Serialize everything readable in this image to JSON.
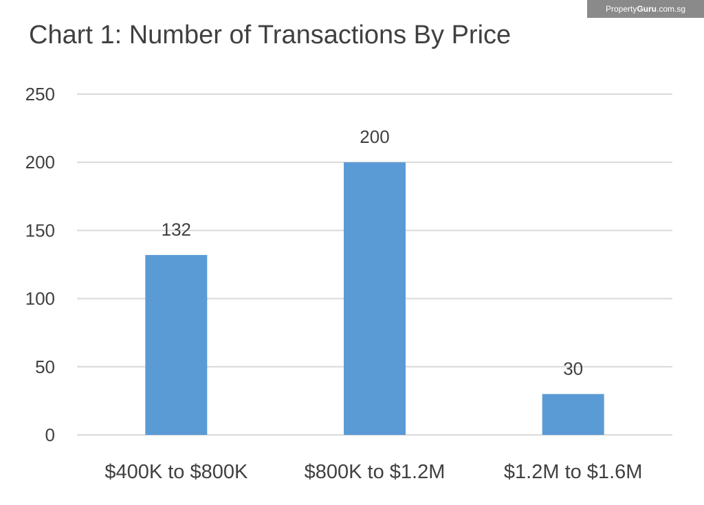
{
  "watermark": {
    "brand_prefix": "Property",
    "brand_bold": "Guru",
    "brand_suffix": ".com.sg"
  },
  "chart_data": {
    "type": "bar",
    "title": "Chart 1: Number of Transactions By Price",
    "xlabel": "",
    "ylabel": "",
    "categories": [
      "$400K to $800K",
      "$800K to $1.2M",
      "$1.2M to $1.6M"
    ],
    "values": [
      132,
      200,
      30
    ],
    "data_labels": [
      "132",
      "200",
      "30"
    ],
    "ylim": [
      0,
      250
    ],
    "yticks": [
      0,
      50,
      100,
      150,
      200,
      250
    ],
    "grid": true,
    "legend": "none",
    "bar_color": "#5b9bd5",
    "grid_color": "#d9d9d9",
    "text_color": "#404040"
  }
}
